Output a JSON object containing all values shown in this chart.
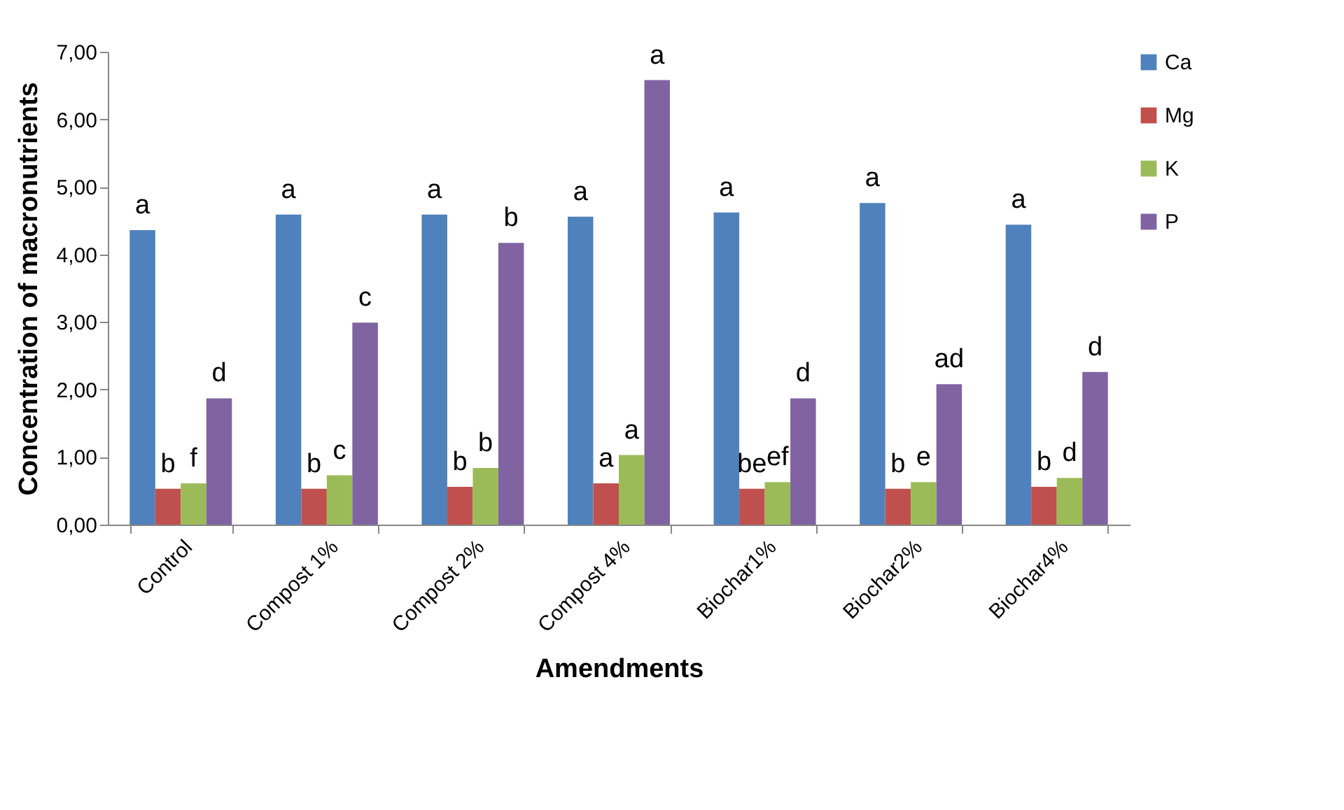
{
  "chart_data": {
    "type": "bar",
    "xlabel": "Amendments",
    "ylabel": "Concentration of macronutrients",
    "categories": [
      "Control",
      "Compost 1%",
      "Compost 2%",
      "Compost 4%",
      "Biochar1%",
      "Biochar2%",
      "Biochar4%"
    ],
    "series": [
      {
        "name": "Ca",
        "color": "#4f81bd",
        "values": [
          4.36,
          4.59,
          4.59,
          4.56,
          4.62,
          4.76,
          4.44
        ],
        "value_labels": [
          "a",
          "a",
          "a",
          "a",
          "a",
          "a",
          "a"
        ]
      },
      {
        "name": "Mg",
        "color": "#c0504d",
        "values": [
          0.53,
          0.53,
          0.56,
          0.61,
          0.53,
          0.53,
          0.56
        ],
        "value_labels": [
          "b",
          "b",
          "b",
          "a",
          "be",
          "b",
          "b"
        ]
      },
      {
        "name": "K",
        "color": "#9bbb59",
        "values": [
          0.61,
          0.73,
          0.84,
          1.03,
          0.63,
          0.63,
          0.69
        ],
        "value_labels": [
          "f",
          "c",
          "b",
          "a",
          "ef",
          "e",
          "d"
        ]
      },
      {
        "name": "P",
        "color": "#8064a2",
        "values": [
          1.87,
          2.99,
          4.17,
          6.58,
          1.87,
          2.08,
          2.26
        ],
        "value_labels": [
          "d",
          "c",
          "b",
          "a",
          "d",
          "ad",
          "d"
        ]
      }
    ],
    "ylim": [
      0,
      7
    ],
    "yticks": [
      {
        "value": 0,
        "label": "0,00"
      },
      {
        "value": 1,
        "label": "1,00"
      },
      {
        "value": 2,
        "label": "2,00"
      },
      {
        "value": 3,
        "label": "3,00"
      },
      {
        "value": 4,
        "label": "4,00"
      },
      {
        "value": 5,
        "label": "5,00"
      },
      {
        "value": 6,
        "label": "6,00"
      },
      {
        "value": 7,
        "label": "7,00"
      }
    ],
    "grid": false,
    "legend": "right"
  }
}
